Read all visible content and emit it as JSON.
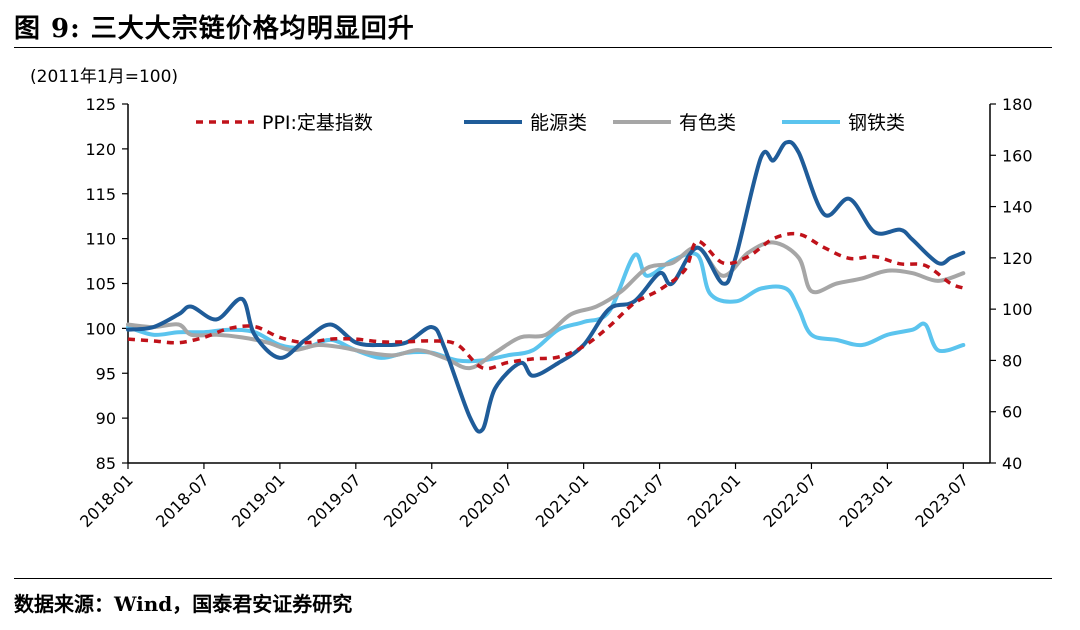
{
  "header": {
    "title": "图 9:  三大大宗链价格均明显回升",
    "unit": "(2011年1月=100)"
  },
  "footer": {
    "source": "数据来源：Wind，国泰君安证券研究"
  },
  "colors": {
    "ppi": "#C0121A",
    "energy": "#1F5C99",
    "nonferrous": "#A6A6A6",
    "steel": "#5BC4EE"
  },
  "chart_data": {
    "type": "line",
    "left_axis": {
      "ylim": [
        85,
        125
      ],
      "ticks": [
        85,
        90,
        95,
        100,
        105,
        110,
        115,
        120,
        125
      ]
    },
    "right_axis": {
      "ylim": [
        40,
        180
      ],
      "ticks": [
        40,
        60,
        80,
        100,
        120,
        140,
        160,
        180
      ]
    },
    "x_ticks": [
      "2018-01",
      "2018-07",
      "2019-01",
      "2019-07",
      "2020-01",
      "2020-07",
      "2021-01",
      "2021-07",
      "2022-01",
      "2022-07",
      "2023-01",
      "2023-07"
    ],
    "grid": false,
    "legend_position": "top",
    "series": [
      {
        "name": "PPI:定基指数",
        "axis": "left",
        "style": "dashed",
        "points": [
          [
            "2018-01",
            98.8
          ],
          [
            "2018-03",
            98.6
          ],
          [
            "2018-05",
            98.4
          ],
          [
            "2018-07",
            99.0
          ],
          [
            "2018-09",
            100.0
          ],
          [
            "2018-11",
            100.2
          ],
          [
            "2019-01",
            99.0
          ],
          [
            "2019-03",
            98.4
          ],
          [
            "2019-05",
            98.8
          ],
          [
            "2019-07",
            98.8
          ],
          [
            "2019-09",
            98.5
          ],
          [
            "2019-11",
            98.5
          ],
          [
            "2020-01",
            98.6
          ],
          [
            "2020-03",
            98.2
          ],
          [
            "2020-05",
            95.6
          ],
          [
            "2020-07",
            96.2
          ],
          [
            "2020-09",
            96.6
          ],
          [
            "2020-11",
            96.8
          ],
          [
            "2021-01",
            98.0
          ],
          [
            "2021-03",
            100.2
          ],
          [
            "2021-05",
            102.8
          ],
          [
            "2021-07",
            104.3
          ],
          [
            "2021-09",
            106.5
          ],
          [
            "2021-10",
            109.7
          ],
          [
            "2021-12",
            107.3
          ],
          [
            "2022-02",
            108.0
          ],
          [
            "2022-04",
            110.0
          ],
          [
            "2022-06",
            110.5
          ],
          [
            "2022-08",
            109.0
          ],
          [
            "2022-10",
            107.8
          ],
          [
            "2022-12",
            108.0
          ],
          [
            "2023-02",
            107.2
          ],
          [
            "2023-04",
            107.0
          ],
          [
            "2023-06",
            105.0
          ],
          [
            "2023-07",
            104.5
          ]
        ]
      },
      {
        "name": "能源类",
        "axis": "right",
        "style": "solid",
        "points": [
          [
            "2018-01",
            92
          ],
          [
            "2018-03",
            93
          ],
          [
            "2018-05",
            98
          ],
          [
            "2018-06",
            101
          ],
          [
            "2018-08",
            96
          ],
          [
            "2018-10",
            104
          ],
          [
            "2018-11",
            90
          ],
          [
            "2019-01",
            81
          ],
          [
            "2019-03",
            88
          ],
          [
            "2019-05",
            94
          ],
          [
            "2019-07",
            87
          ],
          [
            "2019-09",
            86
          ],
          [
            "2019-11",
            87
          ],
          [
            "2020-01",
            93
          ],
          [
            "2020-02",
            85
          ],
          [
            "2020-04",
            58
          ],
          [
            "2020-05",
            53
          ],
          [
            "2020-06",
            69
          ],
          [
            "2020-08",
            79
          ],
          [
            "2020-09",
            74
          ],
          [
            "2020-11",
            79
          ],
          [
            "2021-01",
            86
          ],
          [
            "2021-03",
            100
          ],
          [
            "2021-05",
            103
          ],
          [
            "2021-07",
            114
          ],
          [
            "2021-08",
            110
          ],
          [
            "2021-10",
            124
          ],
          [
            "2021-12",
            110
          ],
          [
            "2022-01",
            120
          ],
          [
            "2022-03",
            159
          ],
          [
            "2022-04",
            158
          ],
          [
            "2022-05",
            165
          ],
          [
            "2022-06",
            161
          ],
          [
            "2022-08",
            137
          ],
          [
            "2022-10",
            143
          ],
          [
            "2022-12",
            130
          ],
          [
            "2023-02",
            131
          ],
          [
            "2023-03",
            127
          ],
          [
            "2023-05",
            118
          ],
          [
            "2023-06",
            120
          ],
          [
            "2023-07",
            122
          ]
        ]
      },
      {
        "name": "有色类",
        "axis": "right",
        "style": "solid",
        "points": [
          [
            "2018-01",
            94
          ],
          [
            "2018-03",
            93
          ],
          [
            "2018-05",
            94
          ],
          [
            "2018-06",
            90
          ],
          [
            "2018-08",
            90
          ],
          [
            "2018-10",
            89
          ],
          [
            "2018-12",
            87
          ],
          [
            "2019-02",
            84
          ],
          [
            "2019-04",
            86
          ],
          [
            "2019-06",
            85
          ],
          [
            "2019-08",
            83
          ],
          [
            "2019-10",
            82
          ],
          [
            "2019-12",
            84
          ],
          [
            "2020-02",
            81
          ],
          [
            "2020-04",
            77
          ],
          [
            "2020-06",
            83
          ],
          [
            "2020-08",
            89
          ],
          [
            "2020-10",
            90
          ],
          [
            "2020-12",
            98
          ],
          [
            "2021-02",
            101
          ],
          [
            "2021-04",
            107
          ],
          [
            "2021-06",
            116
          ],
          [
            "2021-08",
            118
          ],
          [
            "2021-10",
            124
          ],
          [
            "2021-12",
            113
          ],
          [
            "2022-02",
            122
          ],
          [
            "2022-04",
            126
          ],
          [
            "2022-06",
            120
          ],
          [
            "2022-07",
            107
          ],
          [
            "2022-09",
            110
          ],
          [
            "2022-11",
            112
          ],
          [
            "2023-01",
            115
          ],
          [
            "2023-03",
            114
          ],
          [
            "2023-05",
            111
          ],
          [
            "2023-07",
            114
          ]
        ]
      },
      {
        "name": "钢铁类",
        "axis": "right",
        "style": "solid",
        "points": [
          [
            "2018-01",
            93
          ],
          [
            "2018-03",
            90
          ],
          [
            "2018-05",
            91
          ],
          [
            "2018-07",
            91
          ],
          [
            "2018-09",
            92
          ],
          [
            "2018-11",
            91
          ],
          [
            "2019-01",
            86
          ],
          [
            "2019-03",
            85
          ],
          [
            "2019-05",
            88
          ],
          [
            "2019-07",
            84
          ],
          [
            "2019-09",
            81
          ],
          [
            "2019-11",
            83
          ],
          [
            "2020-01",
            83
          ],
          [
            "2020-03",
            80
          ],
          [
            "2020-05",
            80
          ],
          [
            "2020-07",
            82
          ],
          [
            "2020-09",
            84
          ],
          [
            "2020-11",
            92
          ],
          [
            "2021-01",
            95
          ],
          [
            "2021-03",
            99
          ],
          [
            "2021-05",
            121
          ],
          [
            "2021-06",
            113
          ],
          [
            "2021-08",
            119
          ],
          [
            "2021-10",
            121
          ],
          [
            "2021-11",
            106
          ],
          [
            "2022-01",
            103
          ],
          [
            "2022-03",
            108
          ],
          [
            "2022-05",
            108
          ],
          [
            "2022-06",
            100
          ],
          [
            "2022-07",
            90
          ],
          [
            "2022-09",
            88
          ],
          [
            "2022-11",
            86
          ],
          [
            "2023-01",
            90
          ],
          [
            "2023-03",
            92
          ],
          [
            "2023-04",
            94
          ],
          [
            "2023-05",
            84
          ],
          [
            "2023-07",
            86
          ]
        ]
      }
    ]
  }
}
